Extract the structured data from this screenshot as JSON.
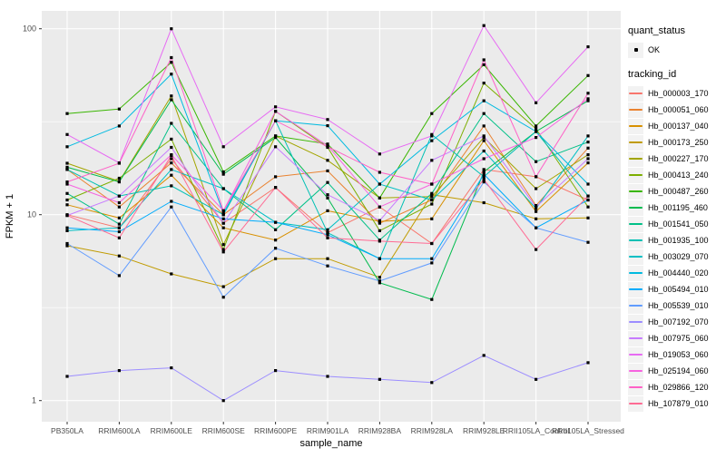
{
  "figure": {
    "panel_bg": "#EBEBEB",
    "grid_color": "#FFFFFF",
    "axis_text_color": "#4D4D4D",
    "tick_color": "#333333",
    "point_color": "#000000"
  },
  "chart_data": {
    "type": "line",
    "title": "",
    "xlabel": "sample_name",
    "ylabel": "FPKM + 1",
    "y_scale": "log10",
    "y_ticks": [
      1,
      10,
      100
    ],
    "ylim": [
      0.9,
      110
    ],
    "grid": true,
    "legend_position": "right",
    "point_shape": "filled-square",
    "legend": {
      "quant_status_title": "quant_status",
      "quant_status_items": [
        "OK"
      ],
      "tracking_id_title": "tracking_id"
    },
    "categories": [
      "PB350LA",
      "RRIM600LA",
      "RRIM600LE",
      "RRIM600SE",
      "RRIM600PE",
      "RRIM901LA",
      "RRIM928BA",
      "RRIM928LA",
      "RRIM928LE",
      "RRII105LA_Control",
      "RRII105LA_Stressed"
    ],
    "series": [
      {
        "name": "Hb_000003_170",
        "color": "#F8766D",
        "values": [
          10,
          8.5,
          20,
          9,
          14,
          8,
          11,
          7,
          17.5,
          16,
          12
        ]
      },
      {
        "name": "Hb_000051_060",
        "color": "#EA8331",
        "values": [
          17.5,
          11,
          19,
          10,
          16,
          17.2,
          9,
          12,
          30,
          11.2,
          22.8
        ]
      },
      {
        "name": "Hb_000137_040",
        "color": "#D89000",
        "values": [
          11.3,
          9.6,
          16.3,
          8.5,
          7.3,
          10.5,
          9.2,
          9.5,
          25,
          10.4,
          19
        ]
      },
      {
        "name": "Hb_000173_250",
        "color": "#C09B00",
        "values": [
          6.8,
          6,
          4.8,
          4.1,
          5.8,
          5.8,
          4.6,
          12.8,
          11.6,
          9.5,
          9.6
        ]
      },
      {
        "name": "Hb_000227_170",
        "color": "#A3A500",
        "values": [
          18.9,
          15.1,
          43.5,
          6.9,
          26.5,
          19.6,
          12.3,
          12.5,
          26,
          13.8,
          21
        ]
      },
      {
        "name": "Hb_000413_240",
        "color": "#7CAE00",
        "values": [
          12,
          15.7,
          25.5,
          6.5,
          36,
          23,
          8.2,
          11.4,
          51,
          29,
          11
        ]
      },
      {
        "name": "Hb_000487_260",
        "color": "#39B600",
        "values": [
          35,
          37,
          66,
          17,
          26.5,
          24,
          12.3,
          35,
          64,
          30,
          56
        ]
      },
      {
        "name": "Hb_001195_460",
        "color": "#00BB4E",
        "values": [
          18,
          15,
          41.5,
          16.5,
          26,
          12.3,
          4.3,
          3.5,
          17,
          28,
          41
        ]
      },
      {
        "name": "Hb_001541_050",
        "color": "#00C087",
        "values": [
          13,
          8.9,
          31,
          13.8,
          8.3,
          14.9,
          7.3,
          13,
          35,
          19.3,
          24.6
        ]
      },
      {
        "name": "Hb_001935_100",
        "color": "#00C0B4",
        "values": [
          17.5,
          12.6,
          14.3,
          10,
          32,
          8,
          5.8,
          27,
          16,
          28,
          12.6
        ]
      },
      {
        "name": "Hb_003029_070",
        "color": "#00BFC4",
        "values": [
          8.2,
          8.5,
          17.5,
          13.8,
          9.1,
          8.3,
          14.6,
          12,
          22,
          10.8,
          26.5
        ]
      },
      {
        "name": "Hb_004440_020",
        "color": "#00BAE0",
        "values": [
          23.2,
          30,
          57,
          10.2,
          32,
          30.1,
          14.6,
          25,
          41,
          28,
          14.6
        ]
      },
      {
        "name": "Hb_005494_010",
        "color": "#00ACFC",
        "values": [
          8.5,
          8.1,
          11.8,
          9.5,
          9.1,
          7.8,
          5.8,
          5.8,
          16.5,
          8.5,
          12
        ]
      },
      {
        "name": "Hb_005539_010",
        "color": "#619CFF",
        "values": [
          7,
          4.7,
          11,
          3.6,
          6.6,
          5.3,
          4.4,
          5.5,
          15,
          8.5,
          7.1
        ]
      },
      {
        "name": "Hb_007192_070",
        "color": "#9C8DFF",
        "values": [
          1.35,
          1.45,
          1.5,
          1.0,
          1.45,
          1.35,
          1.3,
          1.25,
          1.75,
          1.3,
          1.6
        ]
      },
      {
        "name": "Hb_007975_060",
        "color": "#C77CFF",
        "values": [
          9.9,
          12.6,
          23,
          9,
          23.2,
          12.8,
          9.3,
          19.6,
          26.5,
          11,
          20
        ]
      },
      {
        "name": "Hb_019053_060",
        "color": "#E76BF3",
        "values": [
          27,
          19,
          100,
          23.2,
          38,
          32.5,
          21.2,
          26.5,
          104,
          40,
          80
        ]
      },
      {
        "name": "Hb_025194_060",
        "color": "#F763E0",
        "values": [
          14.6,
          11.6,
          21,
          10.5,
          36,
          23.5,
          11,
          14.6,
          20,
          26,
          42
        ]
      },
      {
        "name": "Hb_029866_120",
        "color": "#FF61C7",
        "values": [
          15,
          18.9,
          70,
          10.5,
          32,
          23.2,
          16.9,
          14.6,
          68,
          16,
          45
        ]
      },
      {
        "name": "Hb_107879_010",
        "color": "#FF6B94",
        "values": [
          9.9,
          7.5,
          20.8,
          6.3,
          14,
          7.5,
          7.2,
          7,
          15.5,
          6.5,
          12.6
        ]
      }
    ]
  }
}
